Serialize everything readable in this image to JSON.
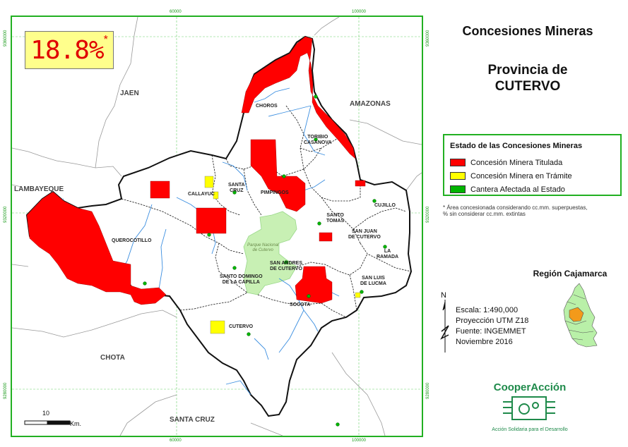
{
  "header": {
    "title_line1": "Concesiones Mineras",
    "title_line2": "Provincia de",
    "title_line3": "CUTERVO"
  },
  "percent": {
    "value": "18.8%",
    "star": "*"
  },
  "coords": {
    "top_x1": "60000",
    "top_x2": "100000",
    "bottom_x1": "60000",
    "bottom_x2": "100000",
    "left_y1": "9360000",
    "left_y2": "9320000",
    "left_y3": "9280000",
    "right_y1": "9360000",
    "right_y2": "9320000",
    "right_y3": "9280000"
  },
  "regions": {
    "jaen": "JAEN",
    "amazonas": "AMAZONAS",
    "lambayeque": "LAMBAYEQUE",
    "chota": "CHOTA",
    "santa_cruz": "SANTA CRUZ"
  },
  "districts": {
    "choros": "CHOROS",
    "toribio": "TORIBIO\nCASANOVA",
    "cujillo": "CUJILLO",
    "callayuc": "CALLAYUC",
    "santa_cruz": "SANTA\nCRUZ",
    "pimpingos": "PIMPINGOS",
    "santo_tomas": "SANTO\nTOMAS",
    "querocotillo": "QUEROCOTILLO",
    "san_juan": "SAN JUAN\nDE CUTERVO",
    "la_ramada": "LA\nRAMADA",
    "san_andres": "SAN ANDRES\nDE CUTERVO",
    "santo_domingo": "SANTO DOMINGO\nDE LA CAPILLA",
    "san_luis": "SAN LUIS\nDE LUCMA",
    "socota": "SOCOTA",
    "cutervo": "CUTERVO",
    "park": "Parque Nacional\nde Cutervo"
  },
  "legend": {
    "title": "Estado de las Concesiones Mineras",
    "items": [
      {
        "label": "Concesión Minera Titulada",
        "color": "#ff0000"
      },
      {
        "label": "Concesión Minera en Trámite",
        "color": "#ffff00"
      },
      {
        "label": "Cantera Afectada al Estado",
        "color": "#00b400"
      }
    ]
  },
  "footnote": {
    "line1": "* Área concesionada considerando cc.mm. superpuestas,",
    "line2": "% sin considerar cc.mm. extintas"
  },
  "inset": {
    "title": "Región Cajamarca"
  },
  "info": {
    "north": "N",
    "scale": "Escala: 1:490,000",
    "projection": "Proyección UTM Z18",
    "source": "Fuente: INGEMMET",
    "date": "Noviembre 2016"
  },
  "scalebar": {
    "value": "10",
    "unit": "Km."
  },
  "logo": {
    "name": "CooperAcción",
    "tagline": "Acción Solidaria para el Desarrollo"
  },
  "colors": {
    "titled": "#ff0000",
    "pending": "#ffff00",
    "quarry": "#00b400",
    "frame": "#22b022",
    "park": "#c8f0b4"
  }
}
